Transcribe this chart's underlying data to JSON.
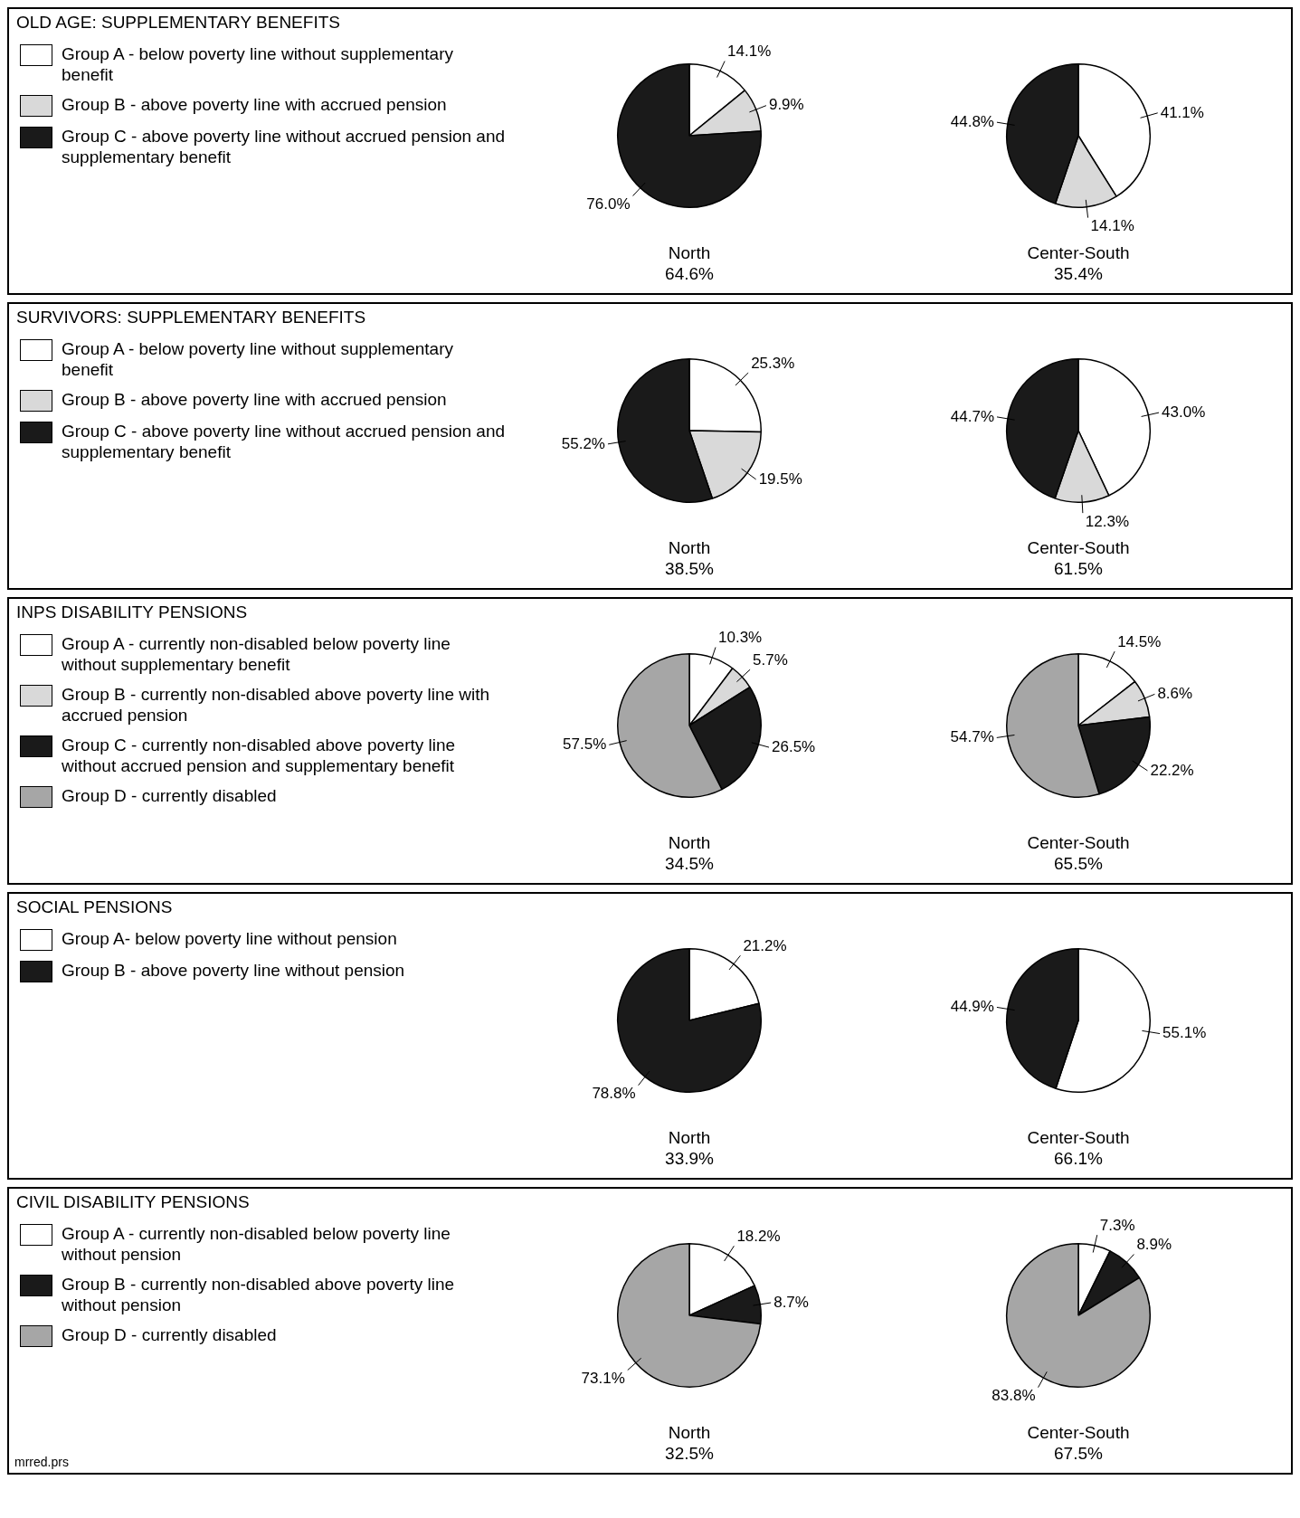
{
  "chart_data": [
    {
      "type": "pie",
      "title": "OLD AGE:  SUPPLEMENTARY BENEFITS",
      "legend": "left",
      "categories": [
        "Group A - below poverty line without supplementary benefit",
        "Group B - above poverty line with accrued pension",
        "Group C - above poverty line without accrued pension and supplementary benefit"
      ],
      "values": [
        14.1,
        9.9,
        76.0
      ],
      "value_labels": [
        "14.1%",
        "9.9%",
        "76.0%"
      ],
      "colors": [
        "#ffffff",
        "#d9d9d9",
        "#1a1a1a"
      ],
      "xlabel": "North",
      "annotations": [
        "64.6%"
      ]
    },
    {
      "type": "pie",
      "categories": [
        null,
        null,
        null
      ],
      "values": [
        41.1,
        14.1,
        44.8
      ],
      "value_labels": [
        "41.1%",
        "14.1%",
        "44.8%"
      ],
      "colors": [
        "#ffffff",
        "#d9d9d9",
        "#1a1a1a"
      ],
      "xlabel": "Center-South",
      "annotations": [
        "35.4%"
      ]
    },
    {
      "type": "pie",
      "title": "SURVIVORS: SUPPLEMENTARY BENEFITS",
      "legend": "left",
      "categories": [
        "Group A - below poverty line without supplementary benefit",
        "Group B - above poverty line with accrued pension",
        "Group C - above poverty line without accrued pension and supplementary benefit"
      ],
      "values": [
        25.3,
        19.5,
        55.2
      ],
      "value_labels": [
        "25.3%",
        "19.5%",
        "55.2%"
      ],
      "colors": [
        "#ffffff",
        "#d9d9d9",
        "#1a1a1a"
      ],
      "xlabel": "North",
      "annotations": [
        "38.5%"
      ]
    },
    {
      "type": "pie",
      "categories": [
        null,
        null,
        null
      ],
      "values": [
        43.0,
        12.3,
        44.7
      ],
      "value_labels": [
        "43.0%",
        "12.3%",
        "44.7%"
      ],
      "colors": [
        "#ffffff",
        "#d9d9d9",
        "#1a1a1a"
      ],
      "xlabel": "Center-South",
      "annotations": [
        "61.5%"
      ]
    },
    {
      "type": "pie",
      "title": "INPS DISABILITY PENSIONS",
      "legend": "left",
      "categories": [
        "Group A - currently non-disabled below poverty line without supplementary benefit",
        "Group B - currently non-disabled above poverty line with accrued pension",
        "Group C - currently non-disabled above poverty line without accrued pension and supplementary benefit",
        "Group D - currently disabled"
      ],
      "values": [
        10.3,
        5.7,
        26.5,
        57.5
      ],
      "value_labels": [
        "10.3%",
        "5.7%",
        "26.5%",
        "57.5%"
      ],
      "colors": [
        "#ffffff",
        "#d9d9d9",
        "#1a1a1a",
        "#a6a6a6"
      ],
      "xlabel": "North",
      "annotations": [
        "34.5%"
      ]
    },
    {
      "type": "pie",
      "categories": [
        null,
        null,
        null,
        null
      ],
      "values": [
        14.5,
        8.6,
        22.2,
        54.7
      ],
      "value_labels": [
        "14.5%",
        "8.6%",
        "22.2%",
        "54.7%"
      ],
      "colors": [
        "#ffffff",
        "#d9d9d9",
        "#1a1a1a",
        "#a6a6a6"
      ],
      "xlabel": "Center-South",
      "annotations": [
        "65.5%"
      ]
    },
    {
      "type": "pie",
      "title": "SOCIAL PENSIONS",
      "legend": "left",
      "categories": [
        "Group A- below poverty line without pension",
        "Group B - above poverty line without pension"
      ],
      "values": [
        21.2,
        78.8
      ],
      "value_labels": [
        "21.2%",
        "78.8%"
      ],
      "colors": [
        "#ffffff",
        "#1a1a1a"
      ],
      "xlabel": "North",
      "annotations": [
        "33.9%"
      ]
    },
    {
      "type": "pie",
      "categories": [
        null,
        null
      ],
      "values": [
        55.1,
        44.9
      ],
      "value_labels": [
        "55.1%",
        "44.9%"
      ],
      "colors": [
        "#ffffff",
        "#1a1a1a"
      ],
      "xlabel": "Center-South",
      "annotations": [
        "66.1%"
      ]
    },
    {
      "type": "pie",
      "title": "CIVIL DISABILITY PENSIONS",
      "legend": "left",
      "categories": [
        "Group A - currently non-disabled below poverty line without pension",
        "Group B - currently non-disabled above poverty line without pension",
        "Group D - currently disabled"
      ],
      "values": [
        18.2,
        8.7,
        73.1
      ],
      "value_labels": [
        "18.2%",
        "8.7%",
        "73.1%"
      ],
      "colors": [
        "#ffffff",
        "#1a1a1a",
        "#a6a6a6"
      ],
      "xlabel": "North",
      "annotations": [
        "32.5%",
        "mrred.prs"
      ]
    },
    {
      "type": "pie",
      "categories": [
        null,
        null,
        null
      ],
      "values": [
        7.3,
        8.9,
        83.8
      ],
      "value_labels": [
        "7.3%",
        "8.9%",
        "83.8%"
      ],
      "colors": [
        "#ffffff",
        "#1a1a1a",
        "#a6a6a6"
      ],
      "xlabel": "Center-South",
      "annotations": [
        "67.5%"
      ]
    }
  ]
}
